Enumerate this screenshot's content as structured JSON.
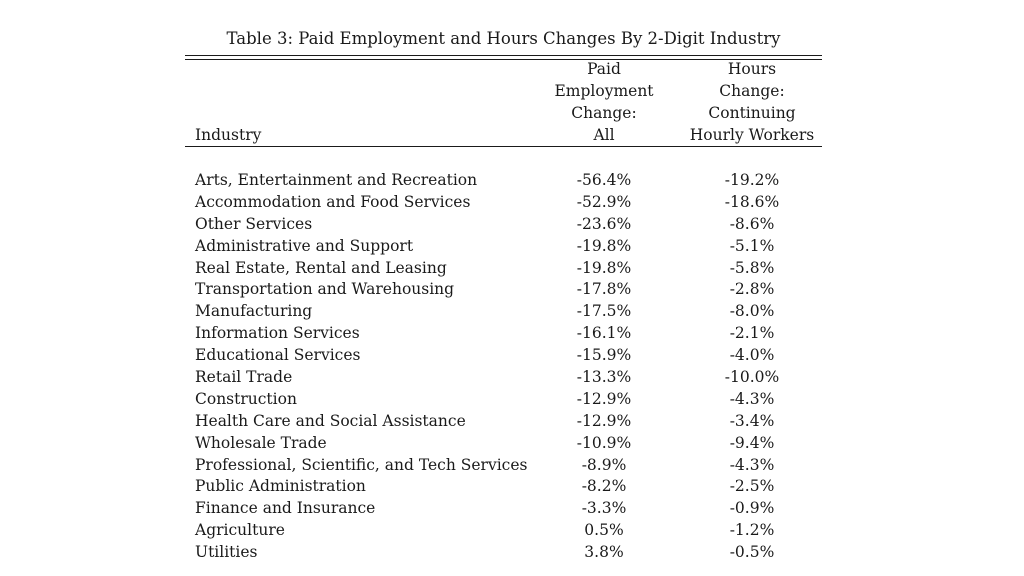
{
  "table": {
    "caption": "Table 3: Paid Employment and Hours Changes By 2-Digit Industry",
    "headers": {
      "industry": "Industry",
      "col1": [
        "Paid",
        "Employment",
        "Change:",
        "All"
      ],
      "col2": [
        "Hours",
        "Change:",
        "Continuing",
        "Hourly Workers"
      ]
    },
    "rows": [
      {
        "industry": "Arts, Entertainment and Recreation",
        "employment": "-56.4%",
        "hours": "-19.2%"
      },
      {
        "industry": "Accommodation and Food Services",
        "employment": "-52.9%",
        "hours": "-18.6%"
      },
      {
        "industry": "Other Services",
        "employment": "-23.6%",
        "hours": "-8.6%"
      },
      {
        "industry": "Administrative and Support",
        "employment": "-19.8%",
        "hours": "-5.1%"
      },
      {
        "industry": "Real Estate, Rental and Leasing",
        "employment": "-19.8%",
        "hours": "-5.8%"
      },
      {
        "industry": "Transportation and Warehousing",
        "employment": "-17.8%",
        "hours": "-2.8%"
      },
      {
        "industry": "Manufacturing",
        "employment": "-17.5%",
        "hours": "-8.0%"
      },
      {
        "industry": "Information Services",
        "employment": "-16.1%",
        "hours": "-2.1%"
      },
      {
        "industry": "Educational Services",
        "employment": "-15.9%",
        "hours": "-4.0%"
      },
      {
        "industry": "Retail Trade",
        "employment": "-13.3%",
        "hours": "-10.0%"
      },
      {
        "industry": "Construction",
        "employment": "-12.9%",
        "hours": "-4.3%"
      },
      {
        "industry": "Health Care and Social Assistance",
        "employment": "-12.9%",
        "hours": "-3.4%"
      },
      {
        "industry": "Wholesale Trade",
        "employment": "-10.9%",
        "hours": "-9.4%"
      },
      {
        "industry": "Professional, Scientific, and Tech Services",
        "employment": "-8.9%",
        "hours": "-4.3%"
      },
      {
        "industry": "Public Administration",
        "employment": "-8.2%",
        "hours": "-2.5%"
      },
      {
        "industry": "Finance and Insurance",
        "employment": "-3.3%",
        "hours": "-0.9%"
      },
      {
        "industry": "Agriculture",
        "employment": "0.5%",
        "hours": "-1.2%"
      },
      {
        "industry": "Utilities",
        "employment": "3.8%",
        "hours": "-0.5%"
      }
    ]
  }
}
